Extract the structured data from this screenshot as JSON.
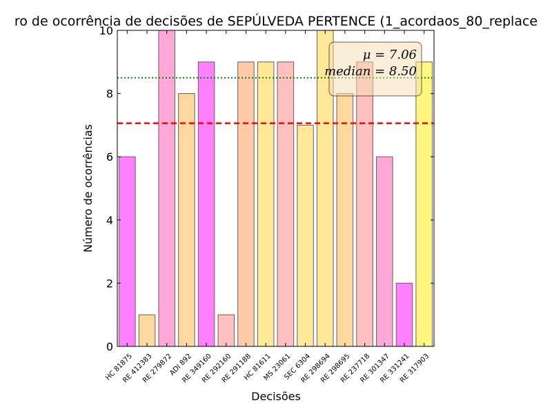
{
  "chart_data": {
    "type": "bar",
    "title": "ro de ocorrência de decisões de SEPÚLVEDA PERTENCE (1_acordaos_80_replace",
    "xlabel": "Decisões",
    "ylabel": "Número de ocorrências",
    "ylim": [
      0,
      10
    ],
    "yticks": [
      "0",
      "2",
      "4",
      "6",
      "8",
      "10"
    ],
    "categories": [
      "HC 81875",
      "RE 412383",
      "RE 279872",
      "ADI 892",
      "RE 349160",
      "RE 292160",
      "RE 291188",
      "HC 81611",
      "MS 23061",
      "SEC 6304",
      "RE 298694",
      "RE 298695",
      "RE 237718",
      "RE 301347",
      "RE 331241",
      "RE 317903"
    ],
    "values": [
      6,
      1,
      10,
      8,
      9,
      1,
      9,
      9,
      9,
      7,
      10,
      8,
      9,
      6,
      2,
      9
    ],
    "bar_colors": [
      "#ff80ff",
      "#ffd8a0",
      "#ffa8d8",
      "#ffd8a0",
      "#ff80ff",
      "#ffc0c0",
      "#ffcaa8",
      "#ffe898",
      "#ffc0c0",
      "#ffe898",
      "#ffe898",
      "#ffd8a0",
      "#ffc0c0",
      "#ffa8d8",
      "#ff80ff",
      "#fff880"
    ],
    "mean": 7.06,
    "median": 8.5,
    "mean_line_color": "#ff0000",
    "median_line_color": "#008000",
    "stats_box": {
      "mean_text": "μ = 7.06",
      "median_text": "median = 8.50",
      "placement": "top-right",
      "background": "#f5deb3"
    },
    "grid": false
  }
}
